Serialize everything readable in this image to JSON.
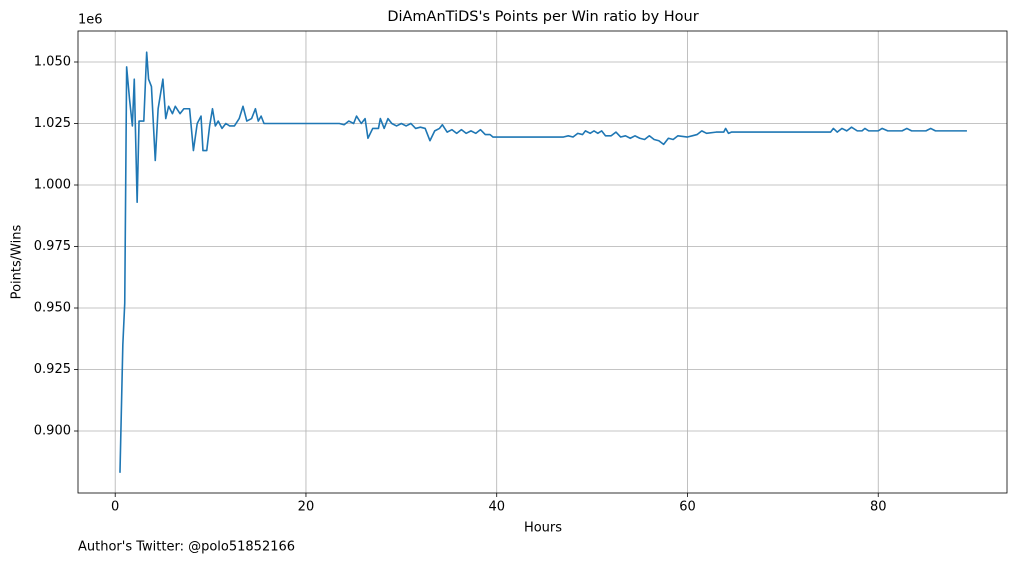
{
  "chart_data": {
    "type": "line",
    "title": "DiAmAnTiDS's Points per Win ratio by Hour",
    "x_label": "Hours",
    "y_label": "Points/Wins",
    "y_offset_label": "1e6",
    "footer": "Author's Twitter: @polo51852166",
    "color": "#1f77b4",
    "grid": true,
    "xlim": [
      -3.9,
      93.5
    ],
    "xticks": [
      0,
      20,
      40,
      60,
      80
    ],
    "ylim": [
      874800,
      1062600
    ],
    "yticks": [
      {
        "value": 900000,
        "label": "0.900"
      },
      {
        "value": 925000,
        "label": "0.925"
      },
      {
        "value": 950000,
        "label": "0.950"
      },
      {
        "value": 975000,
        "label": "0.975"
      },
      {
        "value": 1000000,
        "label": "1.000"
      },
      {
        "value": 1025000,
        "label": "1.025"
      },
      {
        "value": 1050000,
        "label": "1.050"
      }
    ],
    "x": [
      0.5,
      0.8,
      1.0,
      1.2,
      1.5,
      1.8,
      2.0,
      2.3,
      2.5,
      3.0,
      3.3,
      3.5,
      3.8,
      4.2,
      4.5,
      5.0,
      5.3,
      5.6,
      6.0,
      6.3,
      6.8,
      7.2,
      7.8,
      8.2,
      8.6,
      9.0,
      9.2,
      9.6,
      9.9,
      10.2,
      10.5,
      10.8,
      11.2,
      11.6,
      12.0,
      12.5,
      13.0,
      13.4,
      13.8,
      14.3,
      14.7,
      15.0,
      15.3,
      15.6,
      23.5,
      24.0,
      24.5,
      25.0,
      25.3,
      25.8,
      26.2,
      26.5,
      27.0,
      27.6,
      27.8,
      28.2,
      28.6,
      29.0,
      29.5,
      30.0,
      30.5,
      31.0,
      31.5,
      32.0,
      32.5,
      33.0,
      33.5,
      34.0,
      34.3,
      34.8,
      35.3,
      35.8,
      36.3,
      36.8,
      37.3,
      37.8,
      38.3,
      38.8,
      39.3,
      39.6,
      47.0,
      47.5,
      48.0,
      48.5,
      49.0,
      49.3,
      49.8,
      50.2,
      50.6,
      51.0,
      51.4,
      52.0,
      52.5,
      53.0,
      53.5,
      54.0,
      54.5,
      55.0,
      55.5,
      56.0,
      56.5,
      57.0,
      57.5,
      58.0,
      58.5,
      59.0,
      60.0,
      60.5,
      61.0,
      61.5,
      62.0,
      63.0,
      63.8,
      64.0,
      64.3,
      64.6,
      75.0,
      75.3,
      75.7,
      76.2,
      76.7,
      77.2,
      77.8,
      78.3,
      78.6,
      79.0,
      80.0,
      80.4,
      81.0,
      82.5,
      83.0,
      83.5,
      85.0,
      85.5,
      86.0,
      89.3
    ],
    "values": [
      883000,
      935000,
      952000,
      1048000,
      1035000,
      1024000,
      1043000,
      993000,
      1026000,
      1026000,
      1054000,
      1043000,
      1040000,
      1010000,
      1031000,
      1043000,
      1027000,
      1032000,
      1029000,
      1032000,
      1029000,
      1031000,
      1031000,
      1014000,
      1025000,
      1028000,
      1014000,
      1014000,
      1024000,
      1031000,
      1024000,
      1026000,
      1023000,
      1025000,
      1024000,
      1024000,
      1027000,
      1032000,
      1026000,
      1027000,
      1031000,
      1026000,
      1028000,
      1025000,
      1025000,
      1024500,
      1026000,
      1025000,
      1028000,
      1025000,
      1027000,
      1019000,
      1023000,
      1023000,
      1027000,
      1023000,
      1027000,
      1025000,
      1024000,
      1025000,
      1024000,
      1025000,
      1023000,
      1023500,
      1023000,
      1018000,
      1022000,
      1023000,
      1024500,
      1021500,
      1022500,
      1021000,
      1022500,
      1021000,
      1022000,
      1021000,
      1022500,
      1020500,
      1020500,
      1019500,
      1019500,
      1020000,
      1019500,
      1021000,
      1020500,
      1022000,
      1021000,
      1022000,
      1021000,
      1022000,
      1020000,
      1020000,
      1021500,
      1019500,
      1020000,
      1019000,
      1020000,
      1019000,
      1018500,
      1020000,
      1018500,
      1018000,
      1016500,
      1019000,
      1018500,
      1020000,
      1019500,
      1020000,
      1020500,
      1022000,
      1021000,
      1021500,
      1021500,
      1023000,
      1021000,
      1021500,
      1021500,
      1023000,
      1021500,
      1023000,
      1022000,
      1023500,
      1022000,
      1022000,
      1023000,
      1022000,
      1022000,
      1023000,
      1022000,
      1022000,
      1023000,
      1022000,
      1022000,
      1023000,
      1022000,
      1022000
    ]
  }
}
